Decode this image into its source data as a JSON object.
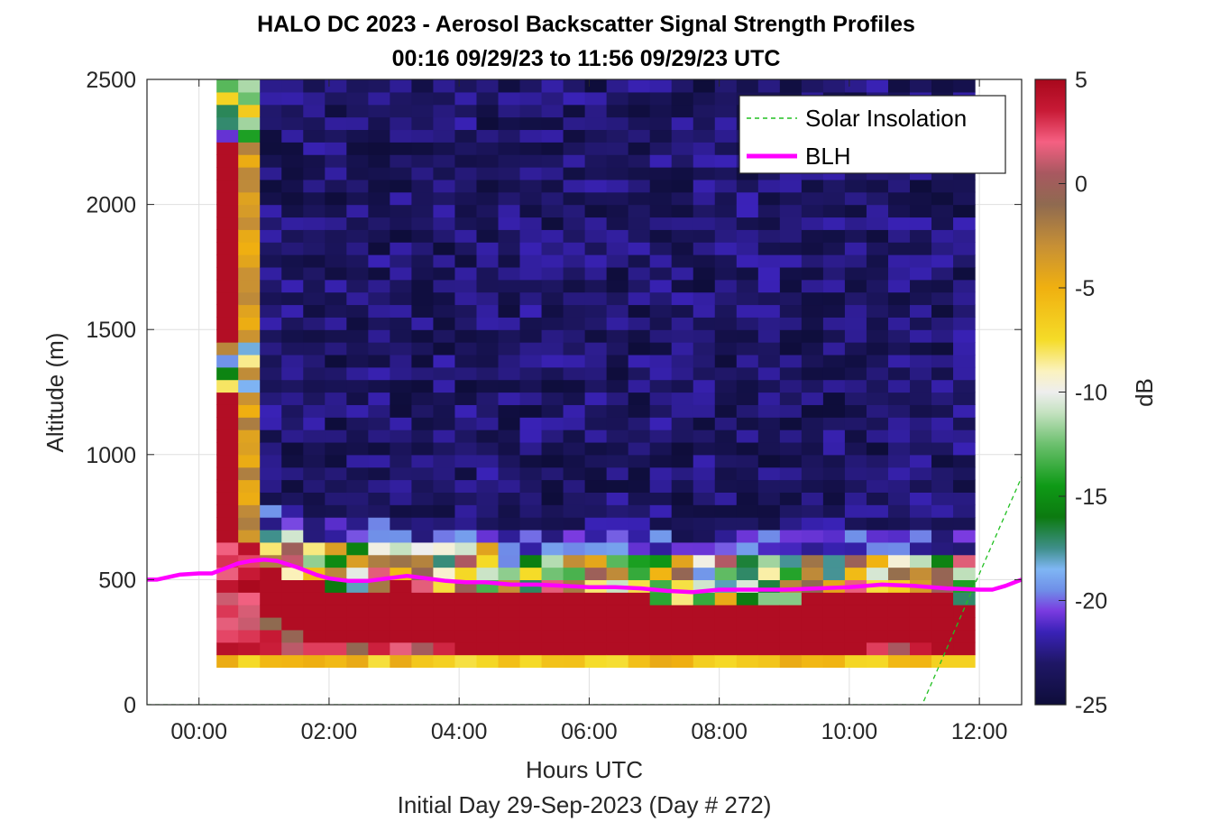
{
  "chart_data": {
    "type": "heatmap",
    "title": "HALO DC 2023 - Aerosol Backscatter Signal Strength Profiles",
    "subtitle": "00:16 09/29/23 to 11:56 09/29/23  UTC",
    "xlabel": "Hours UTC",
    "ylabel": "Altitude (m)",
    "footer": "Initial Day 29-Sep-2023 (Day # 272)",
    "xlim": [
      -0.8,
      12.65
    ],
    "ylim": [
      0,
      2500
    ],
    "x_ticks": [
      0,
      2,
      4,
      6,
      8,
      10,
      12
    ],
    "x_tick_labels": [
      "00:00",
      "02:00",
      "04:00",
      "06:00",
      "08:00",
      "10:00",
      "12:00"
    ],
    "y_ticks": [
      0,
      500,
      1000,
      1500,
      2000,
      2500
    ],
    "y_tick_labels": [
      "0",
      "500",
      "1000",
      "1500",
      "2000",
      "2500"
    ],
    "grid": true,
    "heatmap": {
      "time_start_hr": 0.27,
      "time_end_hr": 11.93,
      "n_time_bins": 35,
      "alt_start_m": 150,
      "alt_end_m": 2500,
      "bin_size_m": 50,
      "colormap_note": "values in dB"
    },
    "colorbar": {
      "label": "dB",
      "range": [
        -25,
        5
      ],
      "ticks": [
        5,
        0,
        -5,
        -10,
        -15,
        -20,
        -25
      ],
      "tick_labels": [
        "5",
        "0",
        "-5",
        "-10",
        "-15",
        "-20",
        "-25"
      ],
      "stops": [
        {
          "v": -25,
          "c": "#0e0d3a"
        },
        {
          "v": -23,
          "c": "#1f1766"
        },
        {
          "v": -21.5,
          "c": "#3a22b8"
        },
        {
          "v": -20.5,
          "c": "#7a3be0"
        },
        {
          "v": -19.5,
          "c": "#6f8fe8"
        },
        {
          "v": -18.5,
          "c": "#7fb6f4"
        },
        {
          "v": -17.5,
          "c": "#3f8f8a"
        },
        {
          "v": -16,
          "c": "#0c7a10"
        },
        {
          "v": -14.5,
          "c": "#0e9a16"
        },
        {
          "v": -12.5,
          "c": "#6cc06e"
        },
        {
          "v": -11,
          "c": "#c4e2c0"
        },
        {
          "v": -10,
          "c": "#eeeeee"
        },
        {
          "v": -9,
          "c": "#fbf2bf"
        },
        {
          "v": -7.5,
          "c": "#f5dc28"
        },
        {
          "v": -5,
          "c": "#f0b010"
        },
        {
          "v": -3,
          "c": "#c79035"
        },
        {
          "v": -1,
          "c": "#8f6a50"
        },
        {
          "v": 0.5,
          "c": "#a85860"
        },
        {
          "v": 2,
          "c": "#f56082"
        },
        {
          "v": 3.5,
          "c": "#c81a36"
        },
        {
          "v": 5,
          "c": "#a8081c"
        }
      ]
    },
    "series": [
      {
        "name": "Solar Insolation",
        "style": "dashed",
        "color": "#22c022",
        "x": [
          -0.8,
          11.12,
          12.65
        ],
        "y": [
          0,
          0,
          910
        ]
      },
      {
        "name": "BLH",
        "style": "solid",
        "color": "#ff00ff",
        "x": [
          -0.8,
          -0.65,
          -0.3,
          0.0,
          0.2,
          0.6,
          0.8,
          1.0,
          1.2,
          1.5,
          1.8,
          2.0,
          2.3,
          2.6,
          2.9,
          3.2,
          3.5,
          3.8,
          4.1,
          4.4,
          4.8,
          5.2,
          5.6,
          6.0,
          6.4,
          6.8,
          7.2,
          7.6,
          8.0,
          8.5,
          9.0,
          9.5,
          10.0,
          10.5,
          11.0,
          11.5,
          12.0,
          12.2,
          12.4,
          12.65
        ],
        "y": [
          500,
          500,
          520,
          525,
          525,
          565,
          575,
          580,
          575,
          550,
          520,
          505,
          495,
          495,
          505,
          515,
          505,
          495,
          490,
          490,
          480,
          480,
          475,
          470,
          470,
          465,
          455,
          450,
          460,
          460,
          460,
          465,
          470,
          480,
          475,
          465,
          460,
          460,
          475,
          500
        ]
      }
    ],
    "legend": {
      "placement": "top-right",
      "entries": [
        "Solar Insolation",
        "BLH"
      ]
    },
    "colors": {
      "solar": "#22c022",
      "blh": "#ff00ff",
      "axis": "#262626",
      "grid": "#dfdfdf"
    }
  }
}
